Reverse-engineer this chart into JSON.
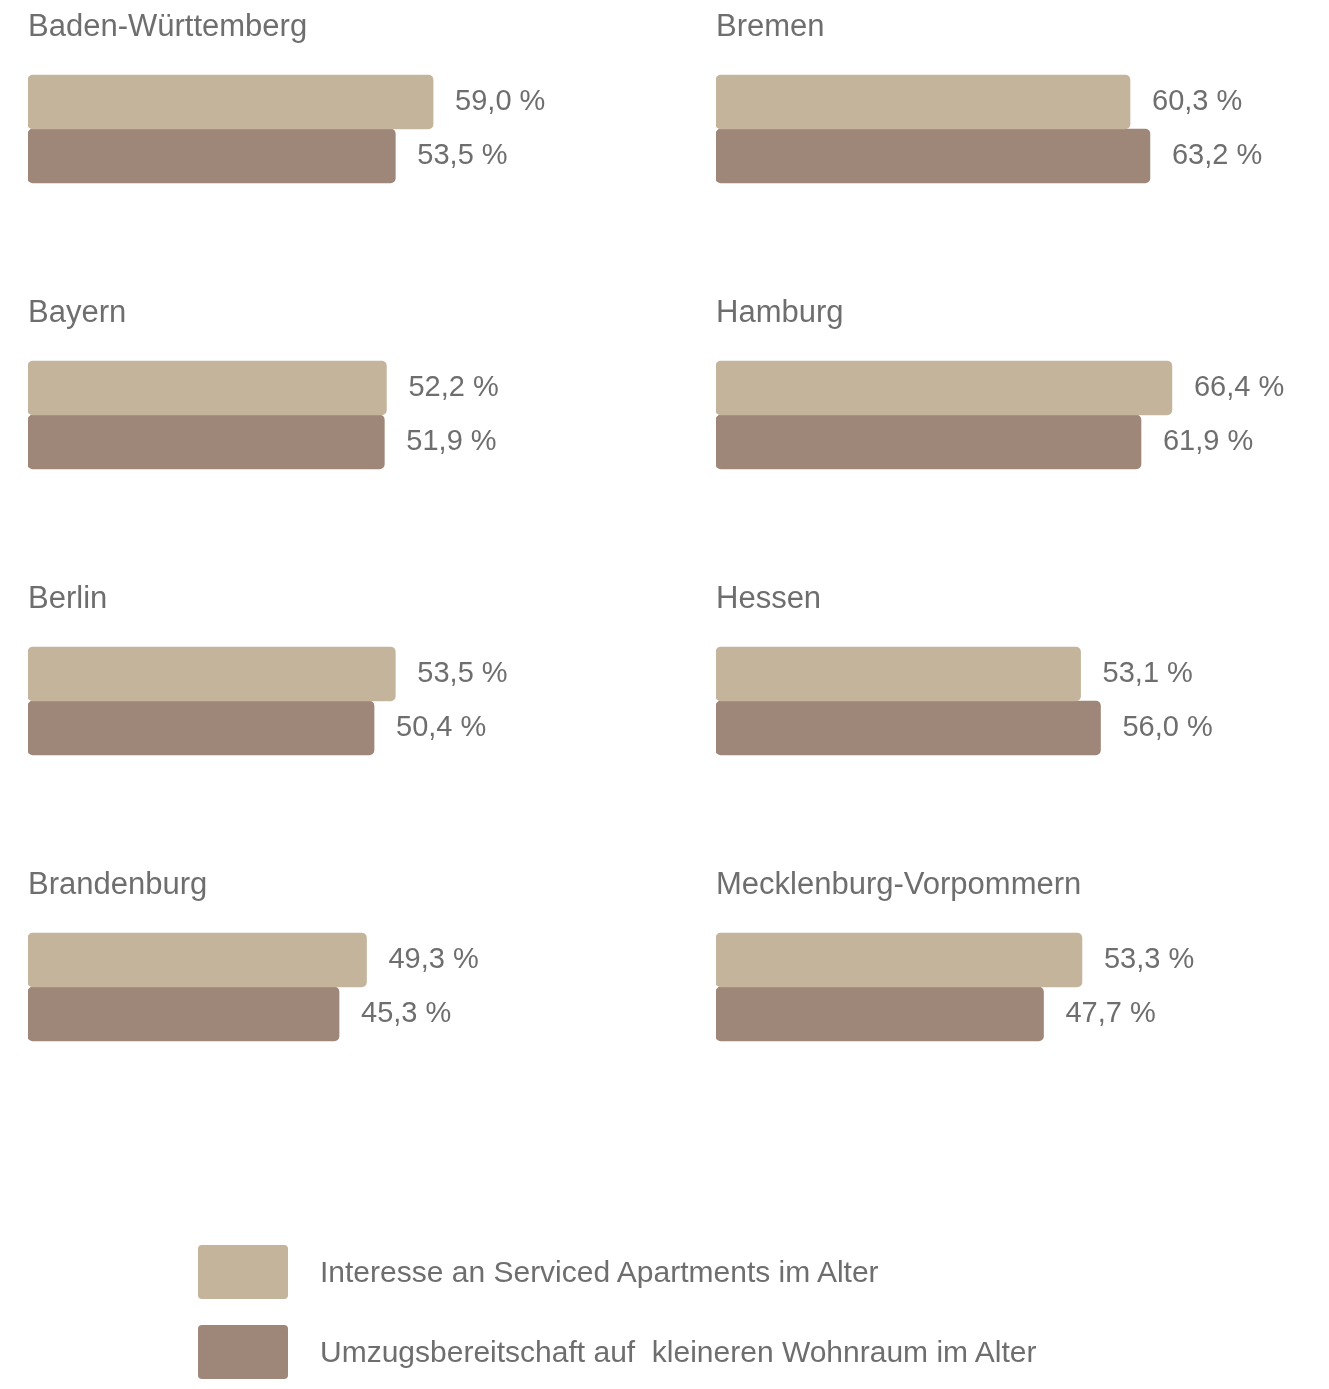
{
  "chart_data": [
    {
      "type": "bar",
      "orientation": "horizontal",
      "legend": "bottom",
      "title": "Baden-Württemberg",
      "categories": [
        null
      ],
      "series": [
        {
          "name": "Interesse an Serviced Apartments im Alter",
          "color": "#c4b49b",
          "values": [
            59.0
          ],
          "value_labels": [
            "59,0 %"
          ]
        },
        {
          "name": "Umzugsbereitschaft auf  kleineren Wohnraum im Alter",
          "color": "#9e8678",
          "values": [
            53.5
          ],
          "value_labels": [
            "53,5 %"
          ]
        }
      ]
    },
    {
      "type": "bar",
      "orientation": "horizontal",
      "title": "Bremen",
      "categories": [
        null
      ],
      "series": [
        {
          "color": "#c4b49b",
          "values": [
            60.3
          ],
          "value_labels": [
            "60,3 %"
          ]
        },
        {
          "color": "#9e8678",
          "values": [
            63.2
          ],
          "value_labels": [
            "63,2 %"
          ]
        }
      ]
    },
    {
      "type": "bar",
      "orientation": "horizontal",
      "title": "Bayern",
      "categories": [
        null
      ],
      "series": [
        {
          "color": "#c4b49b",
          "values": [
            52.2
          ],
          "value_labels": [
            "52,2 %"
          ]
        },
        {
          "color": "#9e8678",
          "values": [
            51.9
          ],
          "value_labels": [
            "51,9 %"
          ]
        }
      ]
    },
    {
      "type": "bar",
      "orientation": "horizontal",
      "title": "Hamburg",
      "categories": [
        null
      ],
      "series": [
        {
          "color": "#c4b49b",
          "values": [
            66.4
          ],
          "value_labels": [
            "66,4 %"
          ]
        },
        {
          "color": "#9e8678",
          "values": [
            61.9
          ],
          "value_labels": [
            "61,9 %"
          ]
        }
      ]
    },
    {
      "type": "bar",
      "orientation": "horizontal",
      "title": "Berlin",
      "categories": [
        null
      ],
      "series": [
        {
          "color": "#c4b49b",
          "values": [
            53.5
          ],
          "value_labels": [
            "53,5 %"
          ]
        },
        {
          "color": "#9e8678",
          "values": [
            50.4
          ],
          "value_labels": [
            "50,4 %"
          ]
        }
      ]
    },
    {
      "type": "bar",
      "orientation": "horizontal",
      "title": "Hessen",
      "categories": [
        null
      ],
      "series": [
        {
          "color": "#c4b49b",
          "values": [
            53.1
          ],
          "value_labels": [
            "53,1 %"
          ]
        },
        {
          "color": "#9e8678",
          "values": [
            56.0
          ],
          "value_labels": [
            "56,0 %"
          ]
        }
      ]
    },
    {
      "type": "bar",
      "orientation": "horizontal",
      "title": "Brandenburg",
      "categories": [
        null
      ],
      "series": [
        {
          "color": "#c4b49b",
          "values": [
            49.3
          ],
          "value_labels": [
            "49,3 %"
          ]
        },
        {
          "color": "#9e8678",
          "values": [
            45.3
          ],
          "value_labels": [
            "45,3 %"
          ]
        }
      ]
    },
    {
      "type": "bar",
      "orientation": "horizontal",
      "title": "Mecklenburg-Vorpommern",
      "categories": [
        null
      ],
      "series": [
        {
          "color": "#c4b49b",
          "values": [
            53.3
          ],
          "value_labels": [
            "53,3 %"
          ]
        },
        {
          "color": "#9e8678",
          "values": [
            47.7
          ],
          "value_labels": [
            "47,7 %"
          ]
        }
      ]
    }
  ]
}
